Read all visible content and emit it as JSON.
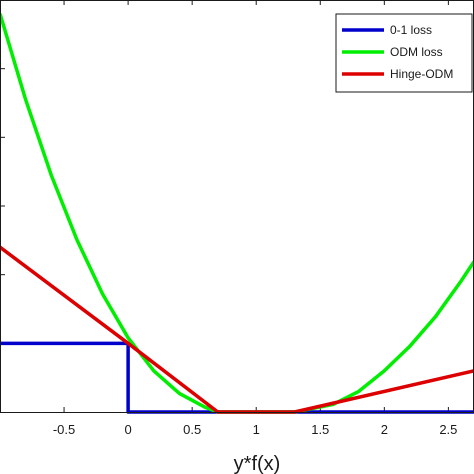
{
  "chart_data": {
    "type": "line",
    "xlabel": "y*f(x)",
    "ylabel": "",
    "xlim": [
      -1,
      2.7
    ],
    "ylim": [
      0,
      6
    ],
    "grid": false,
    "legend_position": "top-right",
    "x_ticks": [
      -0.5,
      0,
      0.5,
      1,
      1.5,
      2,
      2.5
    ],
    "x_tick_labels": [
      "-0.5",
      "0",
      "0.5",
      "1",
      "1.5",
      "2",
      "2.5"
    ],
    "y_ticks": [
      1,
      2,
      3,
      4,
      5,
      6
    ],
    "series": [
      {
        "name": "0-1 loss",
        "color": "#0000cc",
        "x": [
          -1,
          0,
          0,
          2.7
        ],
        "y": [
          1,
          1,
          0,
          0
        ]
      },
      {
        "name": "ODM loss",
        "color": "#00ee00",
        "x": [
          -1,
          -0.8,
          -0.6,
          -0.4,
          -0.2,
          0,
          0.2,
          0.4,
          0.6,
          0.7,
          1.0,
          1.3,
          1.6,
          1.8,
          2.0,
          2.2,
          2.4,
          2.6,
          2.7
        ],
        "y": [
          5.8,
          4.55,
          3.45,
          2.51,
          1.72,
          1.08,
          0.6,
          0.27,
          0.07,
          0.0,
          0.0,
          0.0,
          0.11,
          0.3,
          0.6,
          0.96,
          1.39,
          1.91,
          2.19
        ]
      },
      {
        "name": "Hinge-ODM",
        "color": "#dd0000",
        "x": [
          -1,
          0,
          0.7,
          1.3,
          2.7
        ],
        "y": [
          2.4,
          1.0,
          0.0,
          0.0,
          0.6
        ]
      }
    ]
  }
}
